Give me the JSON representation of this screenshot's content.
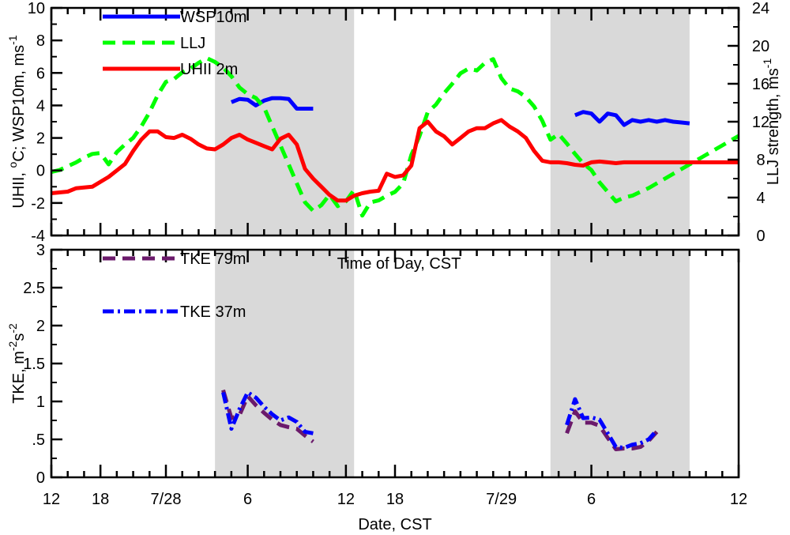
{
  "chart_data": [
    {
      "type": "line",
      "panel": "top",
      "xlabel": "",
      "ylabel_left": "UHII, °C; WSP10m, ms⁻¹",
      "ylabel_left_parts": [
        "UHII, ",
        "o",
        "C; WSP10m, ms",
        "-1"
      ],
      "ylabel_right_parts": [
        "LLJ strength, ms",
        "-1"
      ],
      "ylim": [
        -4,
        10
      ],
      "ylim_right": [
        0,
        24
      ],
      "yticks": [
        "-4",
        "-2",
        "0",
        "2",
        "4",
        "6",
        "8",
        "10"
      ],
      "yticks_right": [
        "0",
        "4",
        "8",
        "12",
        "16",
        "20",
        "24"
      ],
      "inner_label": "Time of Day, CST",
      "shaded_regions": [
        [
          20,
          37
        ],
        [
          61,
          78
        ]
      ],
      "series": [
        {
          "name": "WSP10m",
          "color": "#0000ff",
          "dash": "solid",
          "axis": "left",
          "x": [
            22,
            23,
            24,
            25,
            26,
            27,
            28,
            29,
            30,
            31,
            32
          ],
          "values": [
            4.2,
            4.4,
            4.35,
            4.0,
            4.3,
            4.45,
            4.45,
            4.4,
            3.8,
            3.8,
            3.8
          ]
        },
        {
          "name": "WSP10m",
          "color": "#0000ff",
          "dash": "solid",
          "axis": "left",
          "x": [
            64,
            65,
            66,
            67,
            68,
            69,
            70,
            71,
            72,
            73,
            74,
            75,
            76,
            77,
            78
          ],
          "values": [
            3.4,
            3.6,
            3.5,
            3.0,
            3.5,
            3.4,
            2.8,
            3.1,
            3.0,
            3.1,
            3.0,
            3.1,
            3.0,
            2.95,
            2.9
          ]
        },
        {
          "name": "LLJ",
          "color": "#00ff00",
          "dash": "dashed",
          "axis": "right",
          "x": [
            0,
            1,
            2,
            3,
            4,
            5,
            6,
            7,
            8,
            9,
            10,
            11,
            12,
            13,
            14,
            15,
            16,
            17,
            18,
            19,
            20,
            21,
            22,
            23,
            24,
            25,
            26,
            27,
            28,
            29,
            30,
            31,
            32,
            33,
            34,
            35,
            36,
            37,
            38,
            39,
            40,
            41,
            42,
            43,
            44,
            45,
            46,
            47,
            48,
            49,
            50,
            51,
            52,
            53,
            54,
            55,
            56,
            57,
            58,
            59,
            60,
            61,
            62,
            63,
            64,
            65,
            66,
            67,
            68,
            69,
            70,
            71,
            72,
            73,
            74,
            75,
            76,
            77,
            78,
            79,
            80,
            81,
            82,
            83,
            84
          ],
          "values": [
            6.7,
            6.9,
            7.3,
            7.7,
            8.2,
            8.6,
            8.7,
            7.5,
            8.8,
            9.6,
            10.3,
            11.5,
            13.0,
            14.8,
            16.2,
            16.5,
            17.2,
            17.6,
            18.2,
            18.7,
            18.3,
            17.7,
            16.8,
            15.6,
            14.9,
            14.5,
            13.5,
            11.5,
            9.5,
            7.5,
            5.5,
            3.5,
            2.6,
            3.2,
            4.3,
            3.1,
            3.6,
            4.8,
            2.1,
            3.5,
            3.7,
            4.2,
            4.6,
            5.5,
            8.5,
            10.5,
            13.0,
            13.8,
            15.0,
            16.0,
            17.1,
            17.6,
            17.4,
            18.2,
            18.6,
            16.6,
            15.5,
            15.2,
            14.6,
            13.6,
            12.1,
            10.1,
            10.7,
            9.7,
            8.6,
            7.6,
            6.9,
            5.6,
            4.6,
            3.6,
            4.0,
            4.2,
            4.6,
            5.0,
            5.5,
            6.0,
            6.5,
            7.0,
            7.5,
            8.0,
            8.5,
            9.0,
            9.5,
            10.0,
            10.5
          ]
        },
        {
          "name": "UHII 2m",
          "color": "#ff0000",
          "dash": "solid",
          "axis": "left",
          "x": [
            0,
            1,
            2,
            3,
            4,
            5,
            6,
            7,
            8,
            9,
            10,
            11,
            12,
            13,
            14,
            15,
            16,
            17,
            18,
            19,
            20,
            21,
            22,
            23,
            24,
            25,
            26,
            27,
            28,
            29,
            30,
            31,
            32,
            33,
            34,
            35,
            36,
            37,
            38,
            39,
            40,
            41,
            42,
            43,
            44,
            45,
            46,
            47,
            48,
            49,
            50,
            51,
            52,
            53,
            54,
            55,
            56,
            57,
            58,
            59,
            60,
            61,
            62,
            63,
            64,
            65,
            66,
            67,
            68,
            69,
            70,
            71,
            72,
            73,
            74,
            75,
            76,
            77,
            78,
            79,
            80,
            81,
            82,
            83,
            84
          ],
          "values": [
            -1.4,
            -1.35,
            -1.3,
            -1.1,
            -1.05,
            -1.0,
            -0.7,
            -0.4,
            0.0,
            0.4,
            1.2,
            1.9,
            2.4,
            2.4,
            2.05,
            2.0,
            2.2,
            1.95,
            1.6,
            1.35,
            1.3,
            1.6,
            2.0,
            2.2,
            1.9,
            1.7,
            1.5,
            1.3,
            1.95,
            2.2,
            1.6,
            0.1,
            -0.5,
            -1.0,
            -1.5,
            -1.85,
            -1.85,
            -1.55,
            -1.4,
            -1.3,
            -1.25,
            -0.2,
            -0.4,
            -0.3,
            0.3,
            2.6,
            3.0,
            2.4,
            2.1,
            1.6,
            2.0,
            2.4,
            2.6,
            2.6,
            2.9,
            3.1,
            2.7,
            2.4,
            2.0,
            1.2,
            0.6,
            0.5,
            0.5,
            0.45,
            0.35,
            0.3,
            0.5,
            0.55,
            0.5,
            0.45,
            0.5,
            0.5,
            0.5,
            0.5,
            0.5,
            0.5,
            0.5,
            0.5,
            0.5,
            0.5,
            0.5,
            0.5,
            0.5,
            0.5,
            0.5
          ]
        }
      ]
    },
    {
      "type": "line",
      "panel": "bottom",
      "xlabel": "Date, CST",
      "ylabel_parts": [
        "TKE, m",
        "-2",
        "s",
        "-2"
      ],
      "ylim": [
        0,
        3
      ],
      "yticks": [
        "0",
        ".5",
        "1",
        "1.5",
        "2",
        "2.5",
        "3"
      ],
      "xticks": [
        "12",
        "18",
        "7/28",
        "6",
        "12",
        "18",
        "7/29",
        "6",
        "12"
      ],
      "shaded_regions": [
        [
          20,
          37
        ],
        [
          61,
          78
        ]
      ],
      "series": [
        {
          "name": "TKE 79m",
          "color": "#6b1a6b",
          "dash": "dashed",
          "x": [
            21,
            22,
            23,
            24,
            25,
            26,
            27,
            28,
            29,
            30,
            31,
            32
          ],
          "values": [
            1.15,
            0.78,
            0.82,
            1.07,
            0.95,
            0.85,
            0.76,
            0.69,
            0.66,
            0.64,
            0.55,
            0.47
          ]
        },
        {
          "name": "TKE 37m",
          "color": "#0000ff",
          "dash": "dashdot",
          "x": [
            21,
            22,
            23,
            24,
            25,
            26,
            27,
            28,
            29,
            30,
            31,
            32
          ],
          "values": [
            1.12,
            0.64,
            0.9,
            1.12,
            1.05,
            0.93,
            0.83,
            0.75,
            0.79,
            0.73,
            0.6,
            0.58
          ]
        },
        {
          "name": "TKE 79m",
          "color": "#6b1a6b",
          "dash": "dashed",
          "x": [
            63,
            64,
            65,
            66,
            67,
            68,
            69,
            70,
            71,
            72,
            73,
            74
          ],
          "values": [
            0.58,
            0.87,
            0.72,
            0.72,
            0.68,
            0.52,
            0.37,
            0.38,
            0.38,
            0.4,
            0.48,
            0.6
          ]
        },
        {
          "name": "TKE 37m",
          "color": "#0000ff",
          "dash": "dashdot",
          "x": [
            63,
            64,
            65,
            66,
            67,
            68,
            69,
            70,
            71,
            72,
            73,
            74
          ],
          "values": [
            0.69,
            1.03,
            0.78,
            0.79,
            0.76,
            0.58,
            0.4,
            0.39,
            0.43,
            0.45,
            0.5,
            0.62
          ]
        }
      ]
    }
  ],
  "legend_top": [
    {
      "label": "WSP10m",
      "color": "#0000ff",
      "dash": "solid"
    },
    {
      "label": "LLJ",
      "color": "#00ff00",
      "dash": "dashed"
    },
    {
      "label": "UHII 2m",
      "color": "#ff0000",
      "dash": "solid"
    }
  ],
  "legend_bottom": [
    {
      "label": "TKE 79m",
      "color": "#6b1a6b",
      "dash": "dashed"
    },
    {
      "label": "TKE 37m",
      "color": "#0000ff",
      "dash": "dashdot"
    }
  ],
  "x_axis": {
    "ticks": [
      0,
      6,
      14,
      24,
      36,
      42,
      55,
      66,
      84
    ],
    "minor_step": 2,
    "range": [
      0,
      84
    ]
  }
}
